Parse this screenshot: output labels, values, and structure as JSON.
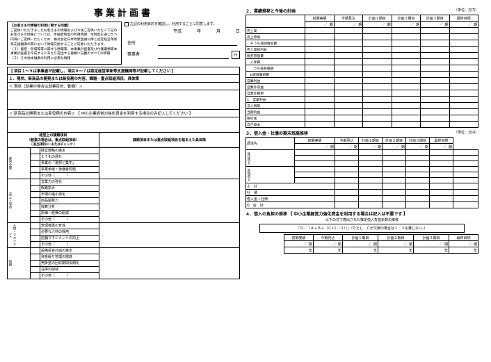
{
  "title": "事業計画書",
  "consent": {
    "heading": "【お客さまの情報の利用に関する同意】",
    "body1": "ご提供いただきましたお客さまの情報および今後ご提供いただく下記のお客さまの情報については、本融資制度の利用時期、本制度を通じかつ円滑にご提供いただくため、株式会社日本政策金融公庫と認定経営革新等支援機関の間において情報交換することに同意いただきます。",
    "body2": "（１）資産・負債等等に関する情報等、本事業計画書及び付属書類等本事業計画書を作成するにあたり提出する書類に記載のすべての情報",
    "body3": "（２）その他本融資の利用に必要な情報"
  },
  "checkbox_text": "左記の利用目的を確認し、利用することに同意します。",
  "date": {
    "era": "平成",
    "y": "年",
    "m": "月",
    "d": "日"
  },
  "addr_label": "住所",
  "name_label": "事業者",
  "seal": "印",
  "sec1": {
    "banner": "【 項目１～５は事業者が記載し、項目６～７は認定経営革新等支援機関等が記載してください 】",
    "h1": "１．現状、新商品の開発または新役務の内容、課題・重点取組項目、具体策",
    "sub1": "＜ 現状（創業の場合は創業目的、動機）＞",
    "sub2": "＜ 新商品の開発または新役務の内容＞ 【 中小企業経営力強化資金を利用する場合のみ記入してください 】"
  },
  "issues_table": {
    "left_head1": "経営上の課題項目",
    "left_head2": "（創業の場合は、重点取組項目）",
    "left_head3": "（ 該当項目に○またはチェック ）",
    "right_head": "課題項目または重点取組項目を踏まえた具体策",
    "cats": [
      {
        "name": "経営全般",
        "items": [
          "経営戦略の策定",
          "ＩＴ化の遅れ",
          "事業の「選択と集中」",
          "事業承継・後継者問題",
          "その他（"
        ]
      },
      {
        "name": "売上・収益",
        "items": [
          "営業力の強化",
          "販路拡大",
          "市場の縮小激化",
          "商品開発力",
          "採算分析",
          "原価・経費の削減",
          "その他（"
        ]
      },
      {
        "name": "人材・マネジメント",
        "items": [
          "管理者層の育成",
          "必要な人材の採用",
          "店舗マネジメントの向上",
          "その他（"
        ]
      },
      {
        "name": "財務",
        "items": [
          "設備投資計画の策定",
          "資金繰り管理の徹底",
          "売掛金の回収期間長期化",
          "在庫の削減",
          "その他（"
        ]
      }
    ],
    "paren_close": "）"
  },
  "sec2": {
    "title": "２．業績推移と今後の計画",
    "unit": "（単位：万円）",
    "period_cols": [
      "前期実績",
      "今期見込",
      "計画１期目",
      "計画２期目",
      "計画３期目",
      "最終目標"
    ],
    "period_sub": "期",
    "slash": "／",
    "rows": [
      "売上高",
      "売上原価",
      "　Ａうち減価償却費",
      "売上高総利益",
      "販売管理費",
      "　人件費",
      "　　うち役員報酬",
      "　B減価償却費",
      "営業利益",
      "営業外収益",
      "営業外費用",
      "C　営業利益",
      "法人税等",
      "当期利益",
      "税引後",
      "自己資本"
    ]
  },
  "sec3": {
    "title": "３．借入金・社債の期末残高推移",
    "unit": "（単位：万円）",
    "lender": "調達先",
    "rows_left": [
      "既往借入",
      "新規借入"
    ],
    "sum_rows": [
      "小　計",
      "社　債",
      "借入金＋社債",
      "D　合　計"
    ]
  },
  "sec4": {
    "title": "４．借入の負担の推移 【 中小企業経営力強化資金を利用する場合は記入は不要です 】",
    "note": "以下の式で算出された推定借入負担年数の推移",
    "formula": "「Ｄ／（Ａ＋Ｂ＋（Ｃ×１／２））」（ただし、Ｃが欠損の場合は１／２を乗じない。）",
    "cols": [
      "前期実績",
      "今期見込",
      "計画１期目",
      "計画２期目",
      "計画３期目",
      "最終目標"
    ],
    "sub_a": "期",
    "sub_b": "年"
  }
}
